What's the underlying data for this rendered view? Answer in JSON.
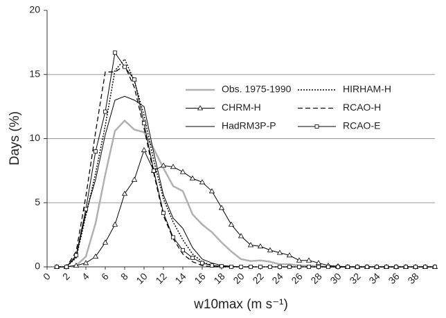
{
  "chart_data": {
    "type": "line",
    "xlabel": "w10max (m s⁻¹)",
    "ylabel": "Days (%)",
    "x": [
      1,
      2,
      3,
      4,
      5,
      6,
      7,
      8,
      9,
      10,
      11,
      12,
      13,
      14,
      15,
      16,
      17,
      18,
      19,
      20,
      21,
      22,
      23,
      24,
      25,
      26,
      27,
      28,
      29,
      30,
      31,
      32,
      33,
      34,
      35,
      36,
      37,
      38,
      39,
      40
    ],
    "xlim": [
      0,
      40
    ],
    "xticks": [
      0,
      2,
      4,
      6,
      8,
      10,
      12,
      14,
      16,
      18,
      20,
      22,
      24,
      26,
      28,
      30,
      32,
      34,
      36,
      38
    ],
    "ylim": [
      0,
      20
    ],
    "yticks": [
      0,
      5,
      10,
      15,
      20
    ],
    "grid": true,
    "legend": "upper right",
    "series": [
      {
        "name": "Obs. 1975-1990",
        "color": "#b0b0b0",
        "style": "solid",
        "width": 2.5,
        "marker": "none",
        "values": [
          0,
          0,
          0.1,
          0.8,
          3.4,
          7.2,
          10.6,
          11.4,
          10.7,
          10.5,
          9.2,
          7.7,
          6.3,
          5.9,
          4.1,
          3.3,
          2.7,
          1.9,
          1.2,
          0.6,
          0.45,
          0.5,
          0.4,
          0.2,
          0.2,
          0.1,
          0.1,
          0.05,
          0,
          0,
          0,
          0,
          0,
          0,
          0,
          0,
          0,
          0,
          0,
          0
        ]
      },
      {
        "name": "CHRM-H",
        "color": "#000000",
        "style": "solid",
        "width": 1,
        "marker": "triangle",
        "values": [
          0,
          0,
          0.1,
          0.3,
          0.8,
          1.9,
          3.3,
          5.7,
          6.8,
          9.1,
          7.5,
          7.9,
          7.8,
          7.4,
          6.9,
          6.6,
          5.9,
          4.6,
          3.3,
          2.4,
          1.7,
          1.6,
          1.3,
          1.1,
          0.9,
          0.5,
          0.5,
          0.3,
          0.1,
          0.05,
          0,
          0,
          0,
          0,
          0,
          0,
          0,
          0,
          0,
          0
        ]
      },
      {
        "name": "HadRM3P-P",
        "color": "#000000",
        "style": "solid",
        "width": 1,
        "marker": "none",
        "values": [
          0,
          0,
          0.8,
          4.2,
          6.8,
          10.3,
          13.0,
          13.3,
          13.0,
          12.5,
          8.9,
          5.6,
          3.8,
          3.0,
          1.5,
          0.6,
          0.3,
          0.1,
          0.05,
          0,
          0,
          0,
          0,
          0,
          0,
          0,
          0,
          0,
          0,
          0,
          0,
          0,
          0,
          0,
          0,
          0,
          0,
          0,
          0,
          0
        ]
      },
      {
        "name": "HIRHAM-H",
        "color": "#000000",
        "style": "dotted",
        "width": 1.5,
        "marker": "none",
        "values": [
          0,
          0,
          0.7,
          4.0,
          7.3,
          11.0,
          15.3,
          16.2,
          14.5,
          11.8,
          8.3,
          5.3,
          3.5,
          2.1,
          1.0,
          0.4,
          0.1,
          0,
          0,
          0,
          0,
          0,
          0,
          0,
          0,
          0,
          0,
          0,
          0,
          0,
          0,
          0,
          0,
          0,
          0,
          0,
          0,
          0,
          0,
          0
        ]
      },
      {
        "name": "RCAO-H",
        "color": "#000000",
        "style": "dashed",
        "width": 1.3,
        "marker": "none",
        "values": [
          0,
          0,
          1.2,
          5.5,
          10.5,
          15.2,
          15.2,
          15.7,
          14.0,
          10.8,
          7.3,
          4.0,
          2.2,
          1.0,
          0.4,
          0.1,
          0,
          0,
          0,
          0,
          0,
          0,
          0,
          0,
          0,
          0,
          0,
          0,
          0,
          0,
          0,
          0,
          0,
          0,
          0,
          0,
          0,
          0,
          0,
          0
        ]
      },
      {
        "name": "RCAO-E",
        "color": "#000000",
        "style": "solid",
        "width": 1,
        "marker": "square",
        "values": [
          0,
          0,
          0.9,
          4.5,
          9.0,
          12.1,
          16.7,
          15.6,
          14.6,
          11.2,
          7.5,
          4.2,
          2.3,
          1.3,
          0.7,
          0.3,
          0.1,
          0.05,
          0,
          0,
          0,
          0,
          0,
          0,
          0,
          0,
          0,
          0,
          0,
          0,
          0,
          0,
          0,
          0,
          0,
          0,
          0,
          0,
          0,
          0
        ]
      }
    ]
  }
}
